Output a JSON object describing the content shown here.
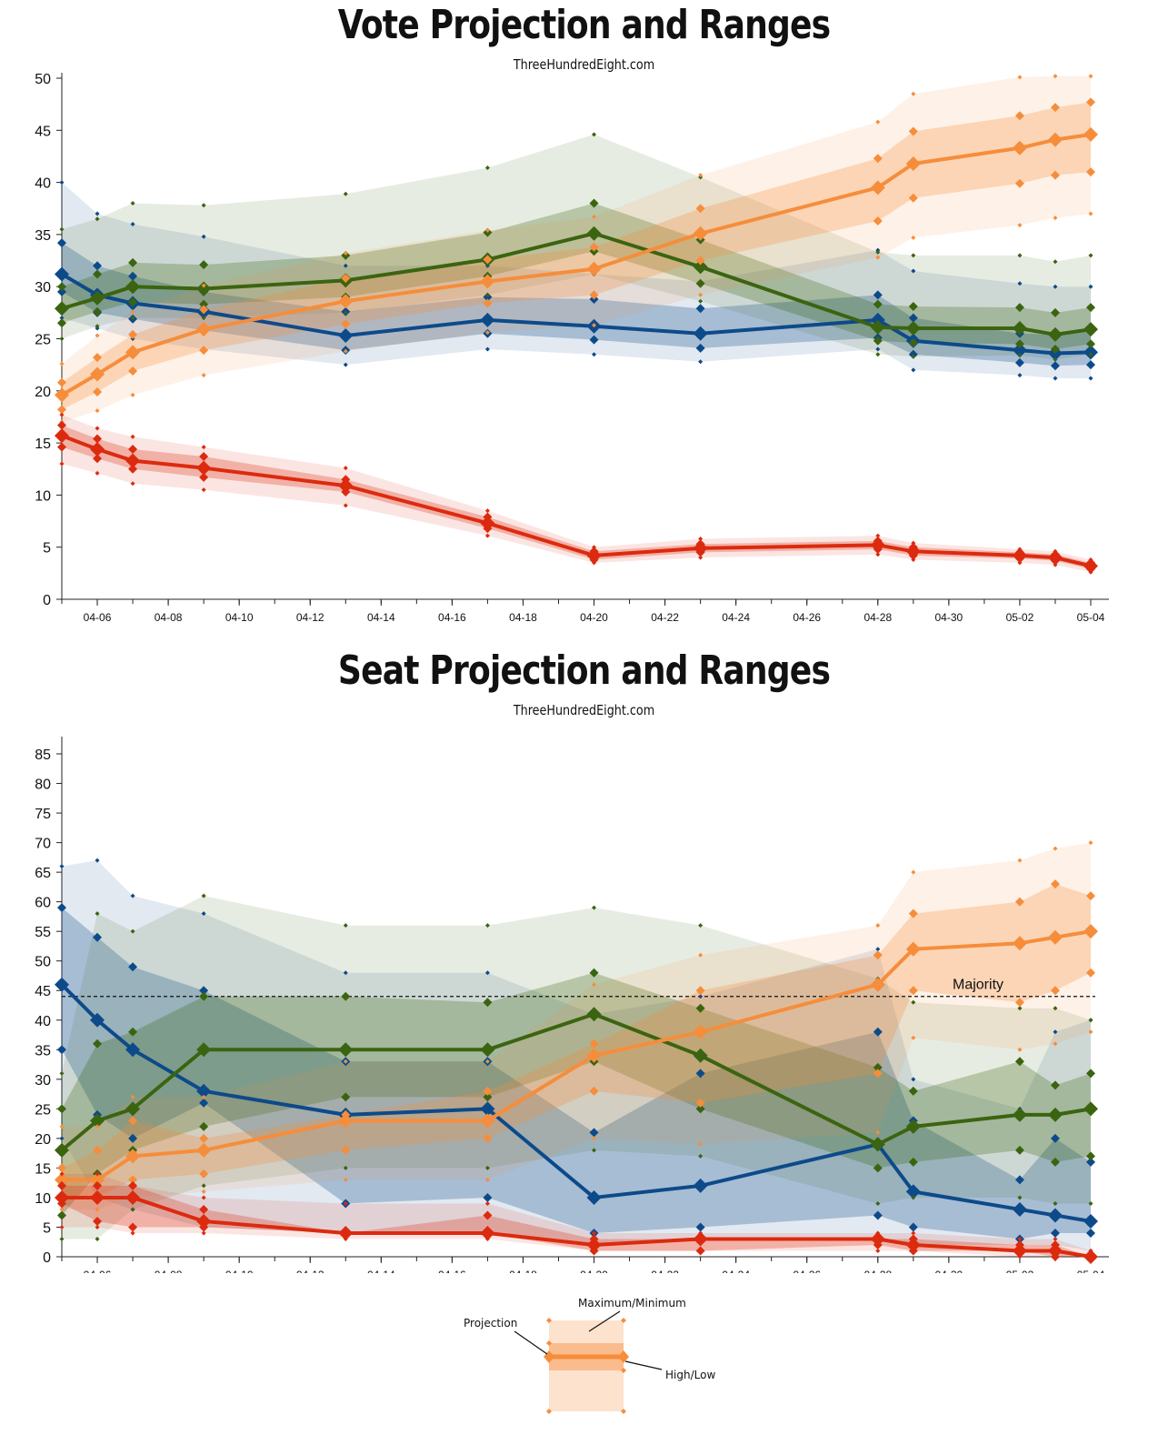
{
  "dates": [
    "04-05",
    "04-06",
    "04-07",
    "04-09",
    "04-13",
    "04-17",
    "04-20",
    "04-23",
    "04-28",
    "04-29",
    "05-02",
    "05-03",
    "05-04"
  ],
  "x_ticks": [
    "04-06",
    "04-08",
    "04-10",
    "04-12",
    "04-14",
    "04-16",
    "04-18",
    "04-20",
    "04-22",
    "04-24",
    "04-26",
    "04-28",
    "04-30",
    "05-02",
    "05-04"
  ],
  "colors": {
    "blue": "#0d4a8a",
    "green": "#3b6410",
    "orange": "#f68d3b",
    "red": "#dc2a0e"
  },
  "legend": {
    "projection": "Projection",
    "max_min": "Maximum/Minimum",
    "high_low": "High/Low"
  },
  "chart_data": [
    {
      "type": "line",
      "title": "Vote Projection and Ranges",
      "subtitle": "ThreeHundredEight.com",
      "ylim": [
        0,
        50
      ],
      "yticks": [
        0,
        5,
        10,
        15,
        20,
        25,
        30,
        35,
        40,
        45,
        50
      ],
      "series": [
        {
          "name": "blue",
          "color": "#0d4a8a",
          "values": [
            31.2,
            29.2,
            28.4,
            27.6,
            25.3,
            26.8,
            26.2,
            25.5,
            26.8,
            24.8,
            23.9,
            23.6,
            23.7
          ],
          "high": [
            34.2,
            32.0,
            31.0,
            29.5,
            27.6,
            29.0,
            28.8,
            27.9,
            29.2,
            27.0,
            25.5,
            25.4,
            25.8
          ],
          "low": [
            29.5,
            27.5,
            26.9,
            25.8,
            23.9,
            25.5,
            24.9,
            24.1,
            25.1,
            23.5,
            22.7,
            22.4,
            22.5
          ],
          "max": [
            40.0,
            37.0,
            36.0,
            34.8,
            32.0,
            32.0,
            31.2,
            30.5,
            33.5,
            31.5,
            30.3,
            30.0,
            30.0
          ],
          "min": [
            27.0,
            26.0,
            25.0,
            24.0,
            22.5,
            24.0,
            23.5,
            22.8,
            24.0,
            22.0,
            21.5,
            21.2,
            21.2
          ]
        },
        {
          "name": "green",
          "color": "#3b6410",
          "values": [
            27.9,
            28.9,
            30.0,
            29.8,
            30.6,
            32.6,
            35.1,
            31.9,
            26.1,
            26.0,
            26.0,
            25.4,
            25.9
          ],
          "high": [
            30.0,
            31.2,
            32.3,
            32.1,
            33.0,
            35.2,
            38.0,
            34.5,
            28.3,
            28.1,
            28.0,
            27.5,
            28.0
          ],
          "low": [
            26.5,
            27.6,
            28.5,
            28.3,
            29.0,
            31.0,
            33.4,
            30.3,
            24.8,
            24.6,
            24.5,
            24.0,
            24.5
          ],
          "max": [
            35.5,
            36.5,
            38.0,
            37.8,
            38.9,
            41.4,
            44.6,
            40.5,
            33.3,
            33.0,
            33.0,
            32.4,
            33.0
          ],
          "min": [
            25.0,
            26.2,
            27.0,
            27.0,
            27.5,
            29.2,
            31.2,
            28.6,
            23.5,
            23.3,
            23.4,
            23.0,
            23.5
          ]
        },
        {
          "name": "orange",
          "color": "#f68d3b",
          "values": [
            19.6,
            21.6,
            23.7,
            25.9,
            28.6,
            30.5,
            31.7,
            35.1,
            39.5,
            41.8,
            43.3,
            44.1,
            44.6
          ],
          "high": [
            20.8,
            23.2,
            25.4,
            27.8,
            30.8,
            32.6,
            33.8,
            37.5,
            42.3,
            44.9,
            46.4,
            47.2,
            47.7
          ],
          "low": [
            18.2,
            19.9,
            21.9,
            23.9,
            26.4,
            28.4,
            29.2,
            32.5,
            36.3,
            38.5,
            39.9,
            40.7,
            41.0
          ],
          "max": [
            22.6,
            25.3,
            27.6,
            30.1,
            33.2,
            35.4,
            36.7,
            40.7,
            45.8,
            48.5,
            50.1,
            50.2,
            50.2
          ],
          "min": [
            17.0,
            18.1,
            19.6,
            21.5,
            23.8,
            25.6,
            26.3,
            29.2,
            32.8,
            34.7,
            35.9,
            36.6,
            37.0
          ]
        },
        {
          "name": "red",
          "color": "#dc2a0e",
          "values": [
            15.7,
            14.4,
            13.3,
            12.6,
            10.9,
            7.3,
            4.2,
            4.9,
            5.2,
            4.6,
            4.2,
            4.0,
            3.2
          ],
          "high": [
            16.7,
            15.4,
            14.4,
            13.7,
            11.5,
            7.9,
            4.6,
            5.3,
            5.6,
            5.0,
            4.5,
            4.3,
            3.5
          ],
          "low": [
            14.6,
            13.5,
            12.5,
            11.7,
            10.3,
            6.8,
            3.8,
            4.5,
            4.8,
            4.2,
            3.9,
            3.7,
            2.9
          ],
          "max": [
            17.7,
            16.4,
            15.6,
            14.6,
            12.6,
            8.5,
            5.0,
            5.8,
            6.1,
            5.4,
            4.8,
            4.6,
            3.8
          ],
          "min": [
            13.0,
            12.1,
            11.1,
            10.5,
            9.0,
            6.1,
            3.5,
            4.0,
            4.3,
            3.8,
            3.5,
            3.3,
            2.6
          ]
        }
      ]
    },
    {
      "type": "line",
      "title": "Seat Projection and Ranges",
      "subtitle": "ThreeHundredEight.com",
      "ylim": [
        0,
        87
      ],
      "yticks": [
        0,
        5,
        10,
        15,
        20,
        25,
        30,
        35,
        40,
        45,
        50,
        55,
        60,
        65,
        70,
        75,
        80,
        85
      ],
      "majority": {
        "value": 44,
        "label": "Majority"
      },
      "series": [
        {
          "name": "blue",
          "color": "#0d4a8a",
          "values": [
            46,
            40,
            35,
            28,
            24,
            25,
            10,
            12,
            19,
            11,
            8,
            7,
            6
          ],
          "high": [
            59,
            54,
            49,
            45,
            33,
            33,
            21,
            31,
            38,
            23,
            13,
            20,
            16
          ],
          "low": [
            35,
            24,
            20,
            26,
            9,
            10,
            4,
            5,
            7,
            5,
            3,
            4,
            4
          ],
          "max": [
            66,
            67,
            61,
            58,
            48,
            48,
            41,
            44,
            52,
            30,
            25,
            38,
            40
          ],
          "min": [
            20,
            10,
            8,
            5,
            4,
            4,
            2,
            3,
            3,
            2,
            2,
            2,
            1
          ]
        },
        {
          "name": "green",
          "color": "#3b6410",
          "values": [
            18,
            23,
            25,
            35,
            35,
            35,
            41,
            34,
            19,
            22,
            24,
            24,
            25
          ],
          "high": [
            25,
            36,
            38,
            44,
            44,
            43,
            48,
            42,
            32,
            28,
            33,
            29,
            31
          ],
          "low": [
            7,
            14,
            18,
            22,
            27,
            27,
            33,
            25,
            15,
            16,
            18,
            16,
            17
          ],
          "max": [
            31,
            58,
            55,
            61,
            56,
            56,
            59,
            56,
            47,
            43,
            42,
            42,
            40
          ],
          "min": [
            3,
            3,
            8,
            12,
            15,
            15,
            18,
            17,
            9,
            10,
            10,
            9,
            9
          ]
        },
        {
          "name": "orange",
          "color": "#f68d3b",
          "values": [
            13,
            13,
            17,
            18,
            23,
            23,
            34,
            38,
            46,
            52,
            53,
            54,
            55
          ],
          "high": [
            15,
            18,
            23,
            20,
            24,
            28,
            36,
            45,
            51,
            58,
            60,
            63,
            61
          ],
          "low": [
            10,
            10,
            13,
            14,
            18,
            20,
            28,
            26,
            31,
            45,
            43,
            45,
            48
          ],
          "max": [
            22,
            22,
            27,
            27,
            33,
            33,
            46,
            51,
            56,
            65,
            67,
            69,
            70
          ],
          "min": [
            8,
            8,
            10,
            11,
            13,
            13,
            20,
            19,
            21,
            37,
            35,
            36,
            38
          ]
        },
        {
          "name": "red",
          "color": "#dc2a0e",
          "values": [
            10,
            10,
            10,
            6,
            4,
            4,
            2,
            3,
            3,
            2,
            1,
            1,
            0
          ],
          "high": [
            12,
            12,
            12,
            8,
            4,
            7,
            3,
            3,
            3,
            3,
            2,
            2,
            0
          ],
          "low": [
            9,
            6,
            5,
            5,
            4,
            4,
            1,
            1,
            2,
            1,
            1,
            0,
            0
          ],
          "max": [
            14,
            14,
            12,
            10,
            9,
            9,
            4,
            4,
            4,
            4,
            3,
            3,
            1
          ],
          "min": [
            5,
            5,
            4,
            4,
            3,
            3,
            1,
            1,
            1,
            1,
            0,
            0,
            0
          ]
        }
      ]
    }
  ]
}
